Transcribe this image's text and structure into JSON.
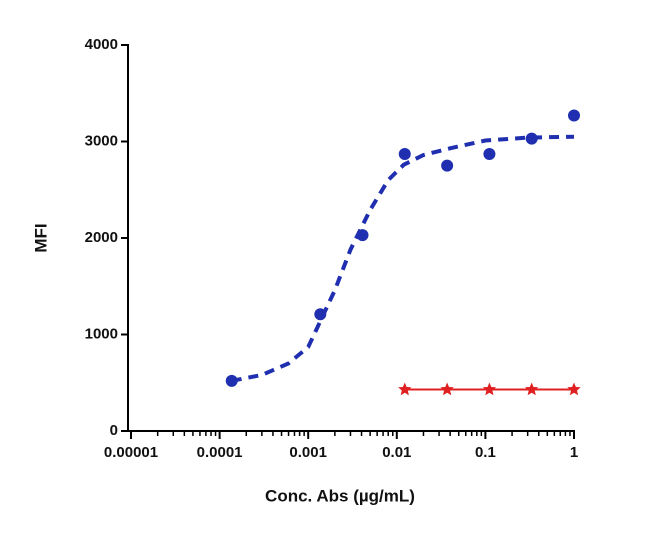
{
  "chart_data": {
    "type": "line",
    "x_label": "Conc. Abs (µg/mL)",
    "y_label": "MFI",
    "xscale": "log",
    "xlim": [
      1e-05,
      1
    ],
    "xticks": [
      1e-05,
      0.0001,
      0.001,
      0.01,
      0.1,
      1
    ],
    "ylim": [
      0,
      4000
    ],
    "yticks": [
      0,
      1000,
      2000,
      3000,
      4000
    ],
    "series": [
      {
        "color": "#1f2fb0",
        "marker": "circle",
        "line": "none",
        "x": [
          0.000137,
          0.00137,
          0.0041,
          0.0123,
          0.037,
          0.111,
          0.333,
          1
        ],
        "values": [
          520,
          1210,
          2030,
          2870,
          2750,
          2870,
          3030,
          3270
        ]
      },
      {
        "color": "#1f2fb0",
        "marker": "none",
        "line": "dashed",
        "x": [
          0.000137,
          0.0003,
          0.0006,
          0.001,
          0.002,
          0.003,
          0.005,
          0.008,
          0.012,
          0.02,
          0.04,
          0.1,
          0.3,
          1
        ],
        "values": [
          520,
          580,
          700,
          870,
          1460,
          1880,
          2290,
          2600,
          2760,
          2860,
          2930,
          3010,
          3040,
          3050
        ]
      },
      {
        "color": "#e02020",
        "marker": "star",
        "line": "solid",
        "x": [
          0.0123,
          0.037,
          0.111,
          0.333,
          1
        ],
        "values": [
          430,
          430,
          430,
          430,
          430
        ]
      }
    ]
  }
}
